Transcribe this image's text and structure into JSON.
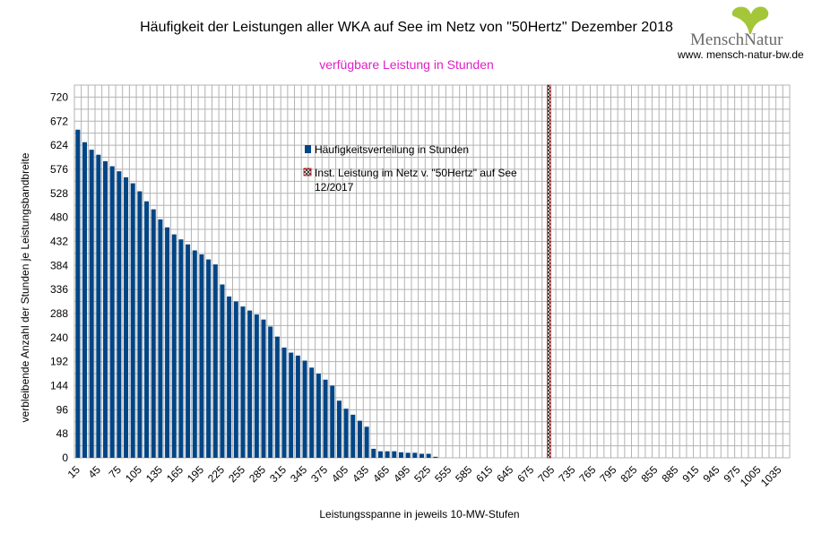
{
  "logo": {
    "name": "MenschNatur",
    "url": "www. mensch-natur-bw.de",
    "leaf_color": "#a4c639"
  },
  "chart_data": {
    "type": "bar",
    "title": "Häufigkeit der Leistungen aller WKA auf See im Netz von \"50Hertz\" Dezember 2018",
    "subtitle": "verfügbare Leistung in Stunden",
    "xlabel": "Leistungsspanne in jeweils 10-MW-Stufen",
    "ylabel": "verbleibende Anzahl der Stunden je Leistungsbandbreite",
    "ylim": [
      0,
      744
    ],
    "yticks": [
      0,
      48,
      96,
      144,
      192,
      240,
      288,
      336,
      384,
      432,
      480,
      528,
      576,
      624,
      672,
      720
    ],
    "x": [
      15,
      25,
      35,
      45,
      55,
      65,
      75,
      85,
      95,
      105,
      115,
      125,
      135,
      145,
      155,
      165,
      175,
      185,
      195,
      205,
      215,
      225,
      235,
      245,
      255,
      265,
      275,
      285,
      295,
      305,
      315,
      325,
      335,
      345,
      355,
      365,
      375,
      385,
      395,
      405,
      415,
      425,
      435,
      445,
      455,
      465,
      475,
      485,
      495,
      505,
      515,
      525,
      535,
      545,
      555,
      565,
      575,
      585,
      595,
      605,
      615,
      625,
      635,
      645,
      655,
      665,
      675,
      685,
      695,
      705,
      715,
      725,
      735,
      745,
      755,
      765,
      775,
      785,
      795,
      805,
      815,
      825,
      835,
      845,
      855,
      865,
      875,
      885,
      895,
      905,
      915,
      925,
      935,
      945,
      955,
      965,
      975,
      985,
      995,
      1005,
      1015,
      1025,
      1035,
      1045
    ],
    "xtick_labels": [
      "15",
      "45",
      "75",
      "105",
      "135",
      "165",
      "195",
      "225",
      "255",
      "285",
      "315",
      "345",
      "375",
      "405",
      "435",
      "465",
      "495",
      "525",
      "555",
      "585",
      "615",
      "645",
      "675",
      "705",
      "735",
      "765",
      "795",
      "825",
      "855",
      "885",
      "915",
      "945",
      "975",
      "1005",
      "1035"
    ],
    "series": [
      {
        "name": "Häufigkeitsverteilung in Stunden",
        "color": "#004586",
        "values": [
          655,
          630,
          615,
          605,
          592,
          582,
          572,
          560,
          548,
          532,
          512,
          496,
          476,
          460,
          446,
          436,
          426,
          414,
          406,
          396,
          386,
          346,
          322,
          312,
          302,
          294,
          286,
          276,
          262,
          242,
          220,
          210,
          204,
          194,
          180,
          168,
          156,
          144,
          114,
          98,
          86,
          74,
          62,
          18,
          13,
          13,
          13,
          11,
          10,
          10,
          8,
          8,
          2,
          0,
          0,
          0,
          0,
          0,
          0,
          0,
          0,
          0,
          0,
          0,
          0,
          0,
          0,
          0,
          0,
          0,
          0,
          0,
          0,
          0,
          0,
          0,
          0,
          0,
          0,
          0,
          0,
          0,
          0,
          0,
          0,
          0,
          0,
          0,
          0,
          0,
          0,
          0,
          0,
          0,
          0,
          0,
          0,
          0,
          0,
          0,
          0,
          0,
          0,
          0
        ]
      },
      {
        "name": "Inst. Leistung im Netz v. \"50Hertz\" auf See 12/2017",
        "type": "marker",
        "x": 700,
        "pattern": "cross-hatch"
      }
    ],
    "grid": true,
    "legend_position": "top-center-inside"
  }
}
